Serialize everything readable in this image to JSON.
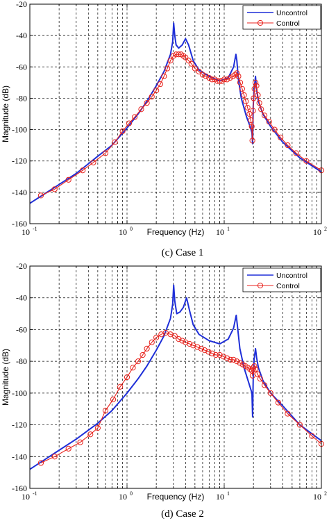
{
  "chart_data": [
    {
      "type": "line",
      "caption": "(c) Case 1",
      "xlabel": "Frequency  (Hz)",
      "ylabel": "Magnitude (dB)",
      "xscale": "log",
      "xlim": [
        0.1,
        100
      ],
      "ylim": [
        -160,
        -20
      ],
      "grid": true,
      "legend_position": "top-right",
      "x_ticks": [
        {
          "base": "10",
          "exp": "-1"
        },
        {
          "base": "10",
          "exp": "0"
        },
        {
          "base": "10",
          "exp": "1"
        },
        {
          "base": "10",
          "exp": "2"
        }
      ],
      "y_ticks": [
        "-20",
        "-40",
        "-60",
        "-80",
        "-100",
        "-120",
        "-140",
        "-160"
      ],
      "series": [
        {
          "name": "Uncontrol",
          "color": "#1f2fd8",
          "marker": "none",
          "points": [
            [
              0.1,
              -147
            ],
            [
              0.15,
              -140
            ],
            [
              0.2,
              -135
            ],
            [
              0.3,
              -128
            ],
            [
              0.5,
              -117
            ],
            [
              0.7,
              -110
            ],
            [
              1.0,
              -99
            ],
            [
              1.3,
              -90
            ],
            [
              1.6,
              -82
            ],
            [
              2.0,
              -72
            ],
            [
              2.4,
              -63
            ],
            [
              2.8,
              -52
            ],
            [
              2.95,
              -44
            ],
            [
              3.02,
              -32
            ],
            [
              3.1,
              -40
            ],
            [
              3.2,
              -46
            ],
            [
              3.4,
              -48
            ],
            [
              3.7,
              -46
            ],
            [
              4.0,
              -42
            ],
            [
              4.3,
              -46
            ],
            [
              4.8,
              -56
            ],
            [
              5.5,
              -62
            ],
            [
              7.0,
              -66
            ],
            [
              9.0,
              -69
            ],
            [
              11.0,
              -67
            ],
            [
              12.5,
              -60
            ],
            [
              13.2,
              -52
            ],
            [
              13.5,
              -56
            ],
            [
              14.0,
              -68
            ],
            [
              15.0,
              -80
            ],
            [
              17.0,
              -92
            ],
            [
              18.5,
              -98
            ],
            [
              19.3,
              -102
            ],
            [
              19.6,
              -109
            ],
            [
              19.9,
              -85
            ],
            [
              20.3,
              -75
            ],
            [
              21.0,
              -66
            ],
            [
              21.5,
              -74
            ],
            [
              22.5,
              -82
            ],
            [
              25,
              -90
            ],
            [
              30,
              -98
            ],
            [
              40,
              -108
            ],
            [
              60,
              -118
            ],
            [
              100,
              -127
            ]
          ]
        },
        {
          "name": "Control",
          "color": "#e8221c",
          "marker": "circle",
          "points": [
            [
              0.13,
              -142
            ],
            [
              0.18,
              -138
            ],
            [
              0.25,
              -132
            ],
            [
              0.35,
              -126
            ],
            [
              0.45,
              -121
            ],
            [
              0.6,
              -115
            ],
            [
              0.75,
              -108
            ],
            [
              0.9,
              -101
            ],
            [
              1.05,
              -96
            ],
            [
              1.2,
              -92
            ],
            [
              1.4,
              -87
            ],
            [
              1.6,
              -83
            ],
            [
              1.8,
              -79
            ],
            [
              2.0,
              -75
            ],
            [
              2.2,
              -71
            ],
            [
              2.4,
              -66
            ],
            [
              2.6,
              -61
            ],
            [
              2.8,
              -56
            ],
            [
              3.0,
              -53
            ],
            [
              3.2,
              -52
            ],
            [
              3.4,
              -52
            ],
            [
              3.6,
              -52
            ],
            [
              3.8,
              -53
            ],
            [
              4.0,
              -54
            ],
            [
              4.3,
              -56
            ],
            [
              4.6,
              -58
            ],
            [
              5.0,
              -61
            ],
            [
              5.5,
              -63
            ],
            [
              6.0,
              -65
            ],
            [
              6.5,
              -66
            ],
            [
              7.0,
              -67
            ],
            [
              7.5,
              -68
            ],
            [
              8.0,
              -68
            ],
            [
              8.5,
              -69
            ],
            [
              9.0,
              -69
            ],
            [
              9.5,
              -69
            ],
            [
              10.0,
              -68
            ],
            [
              10.7,
              -68
            ],
            [
              11.5,
              -67
            ],
            [
              12.3,
              -66
            ],
            [
              13.0,
              -65
            ],
            [
              13.5,
              -64
            ],
            [
              14.0,
              -66
            ],
            [
              14.6,
              -70
            ],
            [
              15.3,
              -74
            ],
            [
              16.0,
              -78
            ],
            [
              16.7,
              -82
            ],
            [
              17.4,
              -86
            ],
            [
              18.2,
              -90
            ],
            [
              18.8,
              -94
            ],
            [
              19.2,
              -98
            ],
            [
              19.5,
              -107
            ],
            [
              19.8,
              -88
            ],
            [
              20.1,
              -80
            ],
            [
              20.5,
              -74
            ],
            [
              21.0,
              -70
            ],
            [
              21.5,
              -72
            ],
            [
              22.2,
              -78
            ],
            [
              23.0,
              -83
            ],
            [
              24.0,
              -87
            ],
            [
              26,
              -91
            ],
            [
              29,
              -95
            ],
            [
              33,
              -100
            ],
            [
              38,
              -105
            ],
            [
              45,
              -110
            ],
            [
              55,
              -115
            ],
            [
              70,
              -120
            ],
            [
              100,
              -126
            ]
          ]
        }
      ]
    },
    {
      "type": "line",
      "caption": "(d) Case 2",
      "xlabel": "Frequency  (Hz)",
      "ylabel": "Magnitude (dB)",
      "xscale": "log",
      "xlim": [
        0.1,
        100
      ],
      "ylim": [
        -160,
        -20
      ],
      "grid": true,
      "legend_position": "top-right",
      "x_ticks": [
        {
          "base": "10",
          "exp": "-1"
        },
        {
          "base": "10",
          "exp": "0"
        },
        {
          "base": "10",
          "exp": "1"
        },
        {
          "base": "10",
          "exp": "2"
        }
      ],
      "y_ticks": [
        "-20",
        "-40",
        "-60",
        "-80",
        "-100",
        "-120",
        "-140",
        "-160"
      ],
      "series": [
        {
          "name": "Uncontrol",
          "color": "#1f2fd8",
          "marker": "none",
          "points": [
            [
              0.1,
              -148
            ],
            [
              0.15,
              -141
            ],
            [
              0.2,
              -136
            ],
            [
              0.3,
              -129
            ],
            [
              0.5,
              -119
            ],
            [
              0.7,
              -111
            ],
            [
              1.0,
              -100
            ],
            [
              1.3,
              -91
            ],
            [
              1.6,
              -83
            ],
            [
              2.0,
              -73
            ],
            [
              2.4,
              -64
            ],
            [
              2.8,
              -53
            ],
            [
              2.95,
              -44
            ],
            [
              3.02,
              -32
            ],
            [
              3.1,
              -42
            ],
            [
              3.25,
              -50
            ],
            [
              3.5,
              -49
            ],
            [
              3.8,
              -46
            ],
            [
              4.1,
              -40
            ],
            [
              4.4,
              -48
            ],
            [
              4.8,
              -57
            ],
            [
              5.5,
              -63
            ],
            [
              7.0,
              -67
            ],
            [
              9.0,
              -69
            ],
            [
              11.0,
              -66
            ],
            [
              12.5,
              -59
            ],
            [
              13.3,
              -51
            ],
            [
              13.7,
              -58
            ],
            [
              14.5,
              -72
            ],
            [
              16.0,
              -84
            ],
            [
              18.0,
              -94
            ],
            [
              19.3,
              -100
            ],
            [
              19.6,
              -115
            ],
            [
              19.9,
              -90
            ],
            [
              20.3,
              -79
            ],
            [
              21.0,
              -72
            ],
            [
              21.6,
              -78
            ],
            [
              22.5,
              -84
            ],
            [
              25,
              -92
            ],
            [
              30,
              -100
            ],
            [
              40,
              -108
            ],
            [
              60,
              -120
            ],
            [
              100,
              -130
            ]
          ]
        },
        {
          "name": "Control",
          "color": "#e8221c",
          "marker": "circle",
          "points": [
            [
              0.13,
              -144
            ],
            [
              0.18,
              -140
            ],
            [
              0.25,
              -135
            ],
            [
              0.33,
              -131
            ],
            [
              0.42,
              -126
            ],
            [
              0.5,
              -122
            ],
            [
              0.6,
              -111
            ],
            [
              0.72,
              -104
            ],
            [
              0.85,
              -96
            ],
            [
              1.0,
              -90
            ],
            [
              1.15,
              -84
            ],
            [
              1.3,
              -80
            ],
            [
              1.45,
              -76
            ],
            [
              1.6,
              -72
            ],
            [
              1.8,
              -68
            ],
            [
              2.0,
              -65
            ],
            [
              2.25,
              -63
            ],
            [
              2.5,
              -62
            ],
            [
              2.8,
              -63
            ],
            [
              3.1,
              -64
            ],
            [
              3.4,
              -66
            ],
            [
              3.7,
              -67
            ],
            [
              4.0,
              -68
            ],
            [
              4.4,
              -69
            ],
            [
              4.8,
              -70
            ],
            [
              5.3,
              -71
            ],
            [
              5.8,
              -72
            ],
            [
              6.3,
              -73
            ],
            [
              6.9,
              -74
            ],
            [
              7.5,
              -75
            ],
            [
              8.2,
              -76
            ],
            [
              9.0,
              -76
            ],
            [
              9.8,
              -77
            ],
            [
              10.7,
              -78
            ],
            [
              11.6,
              -79
            ],
            [
              12.5,
              -79
            ],
            [
              13.5,
              -80
            ],
            [
              14.5,
              -81
            ],
            [
              15.5,
              -82
            ],
            [
              16.5,
              -83
            ],
            [
              17.5,
              -84
            ],
            [
              18.5,
              -85
            ],
            [
              19.3,
              -86
            ],
            [
              19.6,
              -89
            ],
            [
              19.9,
              -84
            ],
            [
              20.4,
              -83
            ],
            [
              21.0,
              -85
            ],
            [
              22.0,
              -88
            ],
            [
              23.5,
              -91
            ],
            [
              26,
              -95
            ],
            [
              30,
              -100
            ],
            [
              36,
              -106
            ],
            [
              45,
              -113
            ],
            [
              60,
              -120
            ],
            [
              80,
              -127
            ],
            [
              100,
              -132
            ]
          ]
        }
      ]
    }
  ]
}
